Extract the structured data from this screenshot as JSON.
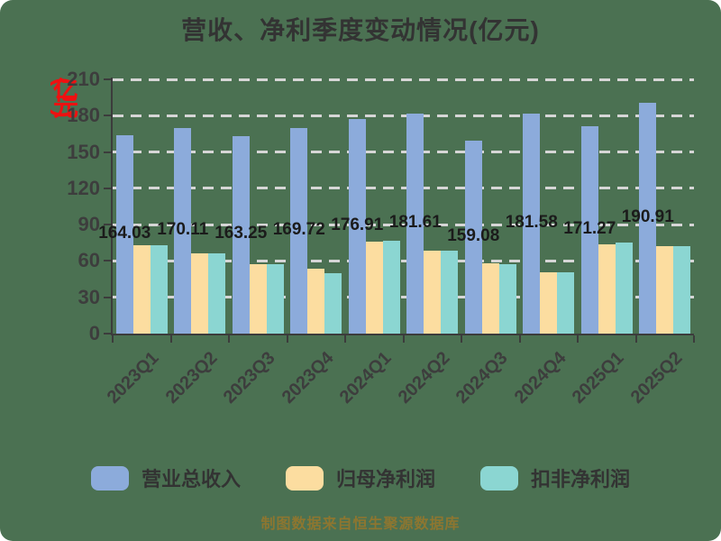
{
  "title": "营收、净利季度变动情况(亿元)",
  "y_axis_unit": "(亿元)",
  "source_note": "制图数据来自恒生聚源数据库",
  "colors": {
    "background": "#4b7152",
    "axis": "#3c3c3c",
    "gridline": "#d6d6d6",
    "title_text": "#333333",
    "value_label_text": "#1b1b1b",
    "tick_label_text": "#3d3d3d",
    "unit_label_red": "#ee1111",
    "watermark_text": "#8d7630",
    "bar_revenue": "#8cabdb",
    "bar_net_profit": "#fcdda0",
    "bar_deducted_profit": "#8bd6d2"
  },
  "legend": [
    {
      "label": "营业总收入",
      "color": "#8cabdb"
    },
    {
      "label": "归母净利润",
      "color": "#fcdda0"
    },
    {
      "label": "扣非净利润",
      "color": "#8bd6d2"
    }
  ],
  "chart_data": {
    "type": "bar",
    "title": "营收、净利季度变动情况(亿元)",
    "categories": [
      "2023Q1",
      "2023Q2",
      "2023Q3",
      "2023Q4",
      "2024Q1",
      "2024Q2",
      "2024Q3",
      "2024Q4",
      "2025Q1",
      "2025Q2"
    ],
    "series": [
      {
        "name": "营业总收入",
        "color": "#8cabdb",
        "values": [
          164.03,
          170.11,
          163.25,
          169.72,
          176.91,
          181.61,
          159.08,
          181.58,
          171.27,
          190.91
        ],
        "labels": [
          "164.03",
          "170.11",
          "163.25",
          "169.72",
          "176.91",
          "181.61",
          "159.08",
          "181.58",
          "171.27",
          "190.91"
        ],
        "show_labels": true
      },
      {
        "name": "归母净利润",
        "color": "#fcdda0",
        "values": [
          73,
          66,
          57,
          54,
          76,
          68.5,
          58,
          51,
          74,
          72
        ],
        "show_labels": false
      },
      {
        "name": "扣非净利润",
        "color": "#8bd6d2",
        "values": [
          73,
          66,
          57,
          50,
          76.5,
          68.5,
          57,
          51,
          75.5,
          72.5
        ],
        "show_labels": false
      }
    ],
    "ylim": [
      0,
      210
    ],
    "ytick_interval": 30,
    "yticks": [
      0,
      30,
      60,
      90,
      120,
      150,
      180,
      210
    ],
    "ylabel": "(亿元)",
    "xlabel": "",
    "grid": "dashed-horizontal",
    "legend_position": "bottom"
  }
}
